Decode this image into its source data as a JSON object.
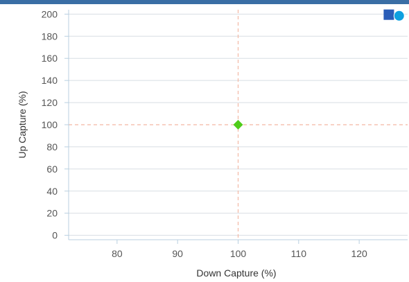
{
  "chart_data": {
    "type": "scatter",
    "title": "",
    "xlabel": "Down Capture (%)",
    "ylabel": "Up Capture (%)",
    "xlim": [
      72,
      128
    ],
    "ylim": [
      -4,
      204
    ],
    "x_ticks": [
      80,
      90,
      100,
      110,
      120
    ],
    "y_ticks": [
      0,
      20,
      40,
      60,
      80,
      100,
      120,
      140,
      160,
      180,
      200
    ],
    "grid": "horizontal",
    "reference_lines": {
      "x": 100,
      "y": 100,
      "color": "#f4b8a4"
    },
    "points": [
      {
        "x": 100,
        "y": 100,
        "marker": "diamond",
        "color": "#4fcc1a"
      },
      {
        "x": 124.9,
        "y": 199.5,
        "marker": "square",
        "color": "#2a5db8"
      },
      {
        "x": 126.6,
        "y": 198.5,
        "marker": "circle",
        "color": "#0ea0e0"
      }
    ]
  },
  "colors": {
    "accent_bar": "#3a6ea5",
    "grid": "#d7dde3",
    "axis": "#b8cfe0"
  }
}
